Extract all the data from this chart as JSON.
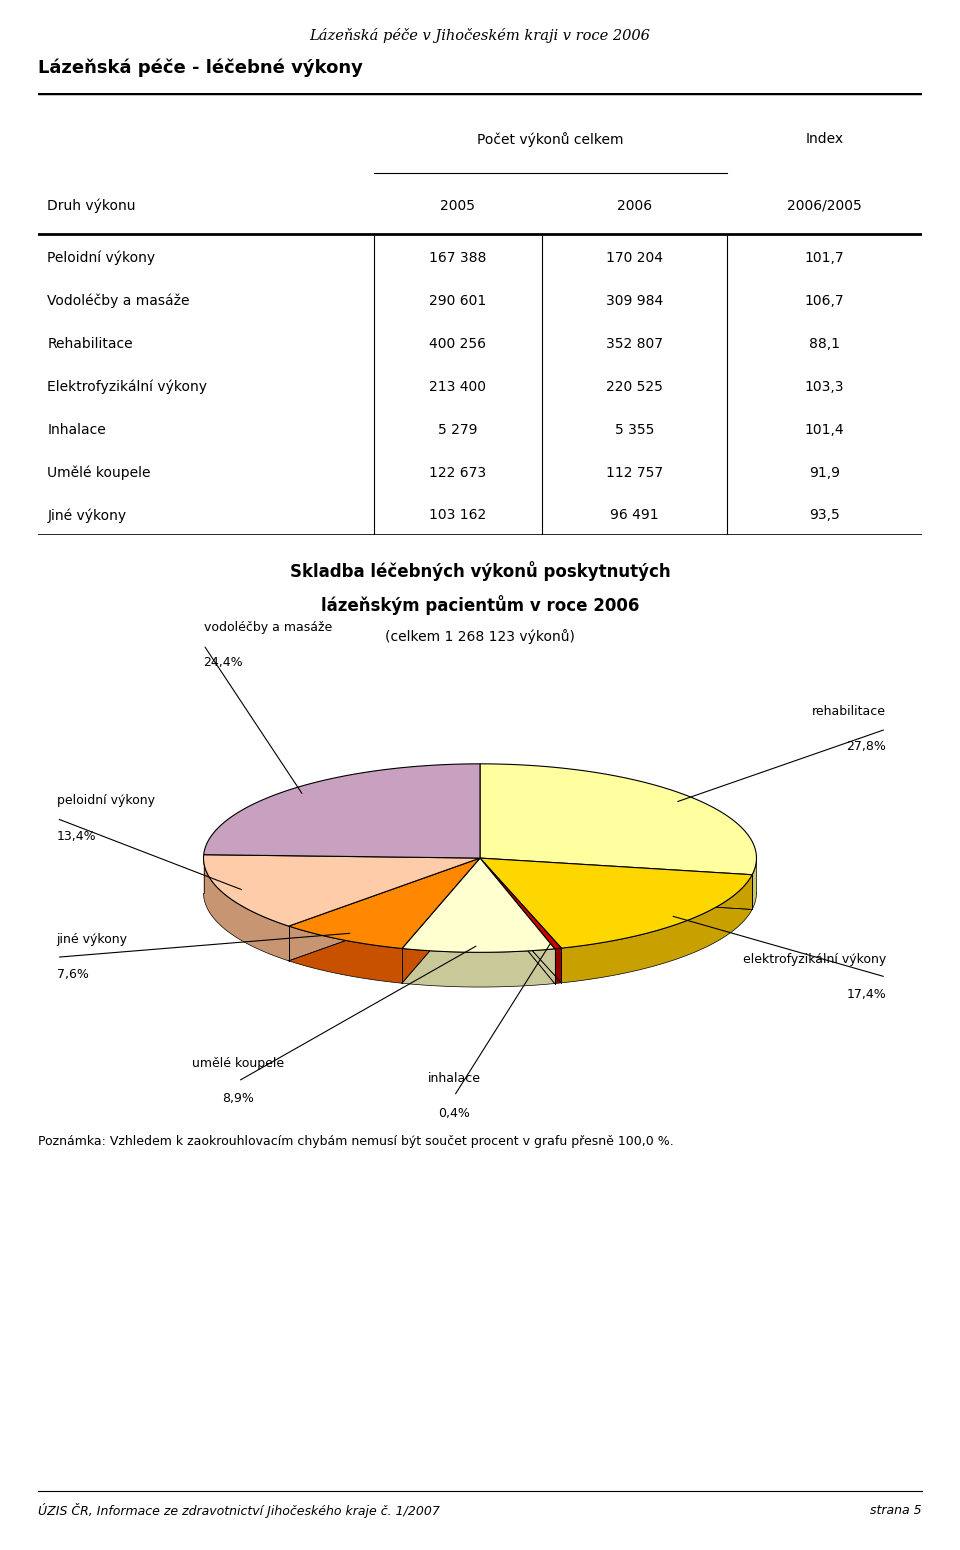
{
  "page_title": "Lázeňská péče v Jihočeském kraji v roce 2006",
  "section_title": "Lázeňská péče - léčebné výkony",
  "table_header_col0": "Druh výkonu",
  "table_header_group": "Počet výkonů celkem",
  "table_header_2005": "2005",
  "table_header_2006": "2006",
  "table_header_index": "Index",
  "table_header_index2": "2006/2005",
  "table_rows": [
    [
      "Peloidní výkony",
      "167 388",
      "170 204",
      "101,7"
    ],
    [
      "Vodoléčby a masáže",
      "290 601",
      "309 984",
      "106,7"
    ],
    [
      "Rehabilitace",
      "400 256",
      "352 807",
      "88,1"
    ],
    [
      "Elektrofyzikální výkony",
      "213 400",
      "220 525",
      "103,3"
    ],
    [
      "Inhalace",
      "5 279",
      "5 355",
      "101,4"
    ],
    [
      "Umělé koupele",
      "122 673",
      "112 757",
      "91,9"
    ],
    [
      "Jiné výkony",
      "103 162",
      "96 491",
      "93,5"
    ]
  ],
  "pie_title_line1": "Skladba léčebných výkonů poskytnutých",
  "pie_title_line2": "lázeňským pacientům v roce 2006",
  "pie_subtitle": "(celkem 1 268 123 výkonů)",
  "pie_slices": [
    {
      "label_line1": "rehabilitace",
      "label_line2": "27,8%",
      "pct": 27.8,
      "color": "#FFFFA0",
      "side_color": "#C8C860"
    },
    {
      "label_line1": "elektrofyzikální výkony",
      "label_line2": "17,4%",
      "pct": 17.4,
      "color": "#FFD700",
      "side_color": "#B8A000"
    },
    {
      "label_line1": "inhalace",
      "label_line2": "0,4%",
      "pct": 0.4,
      "color": "#CC0000",
      "side_color": "#880000"
    },
    {
      "label_line1": "umělé koupele",
      "label_line2": "8,9%",
      "pct": 8.9,
      "color": "#FFFFD0",
      "side_color": "#C8C890"
    },
    {
      "label_line1": "jiné výkony",
      "label_line2": "7,6%",
      "pct": 7.6,
      "color": "#FF8800",
      "side_color": "#CC5500"
    },
    {
      "label_line1": "peloidní výkony",
      "label_line2": "13,4%",
      "pct": 13.4,
      "color": "#FFCCAA",
      "side_color": "#CC8870"
    },
    {
      "label_line1": "vodoléčby a masáže",
      "label_line2": "24,4%",
      "pct": 24.4,
      "color": "#C8A0C0",
      "side_color": "#886080"
    }
  ],
  "note": "Poznámka: Vzhledem k zaokrouhlovacím chybám nemusí být součet procent v grafu přesně 100,0 %.",
  "footer_left": "ÚZIS ČR, Informace ze zdravotnictví Jihočeského kraje č. 1/2007",
  "footer_right": "strana 5",
  "bg_color": "#ffffff"
}
